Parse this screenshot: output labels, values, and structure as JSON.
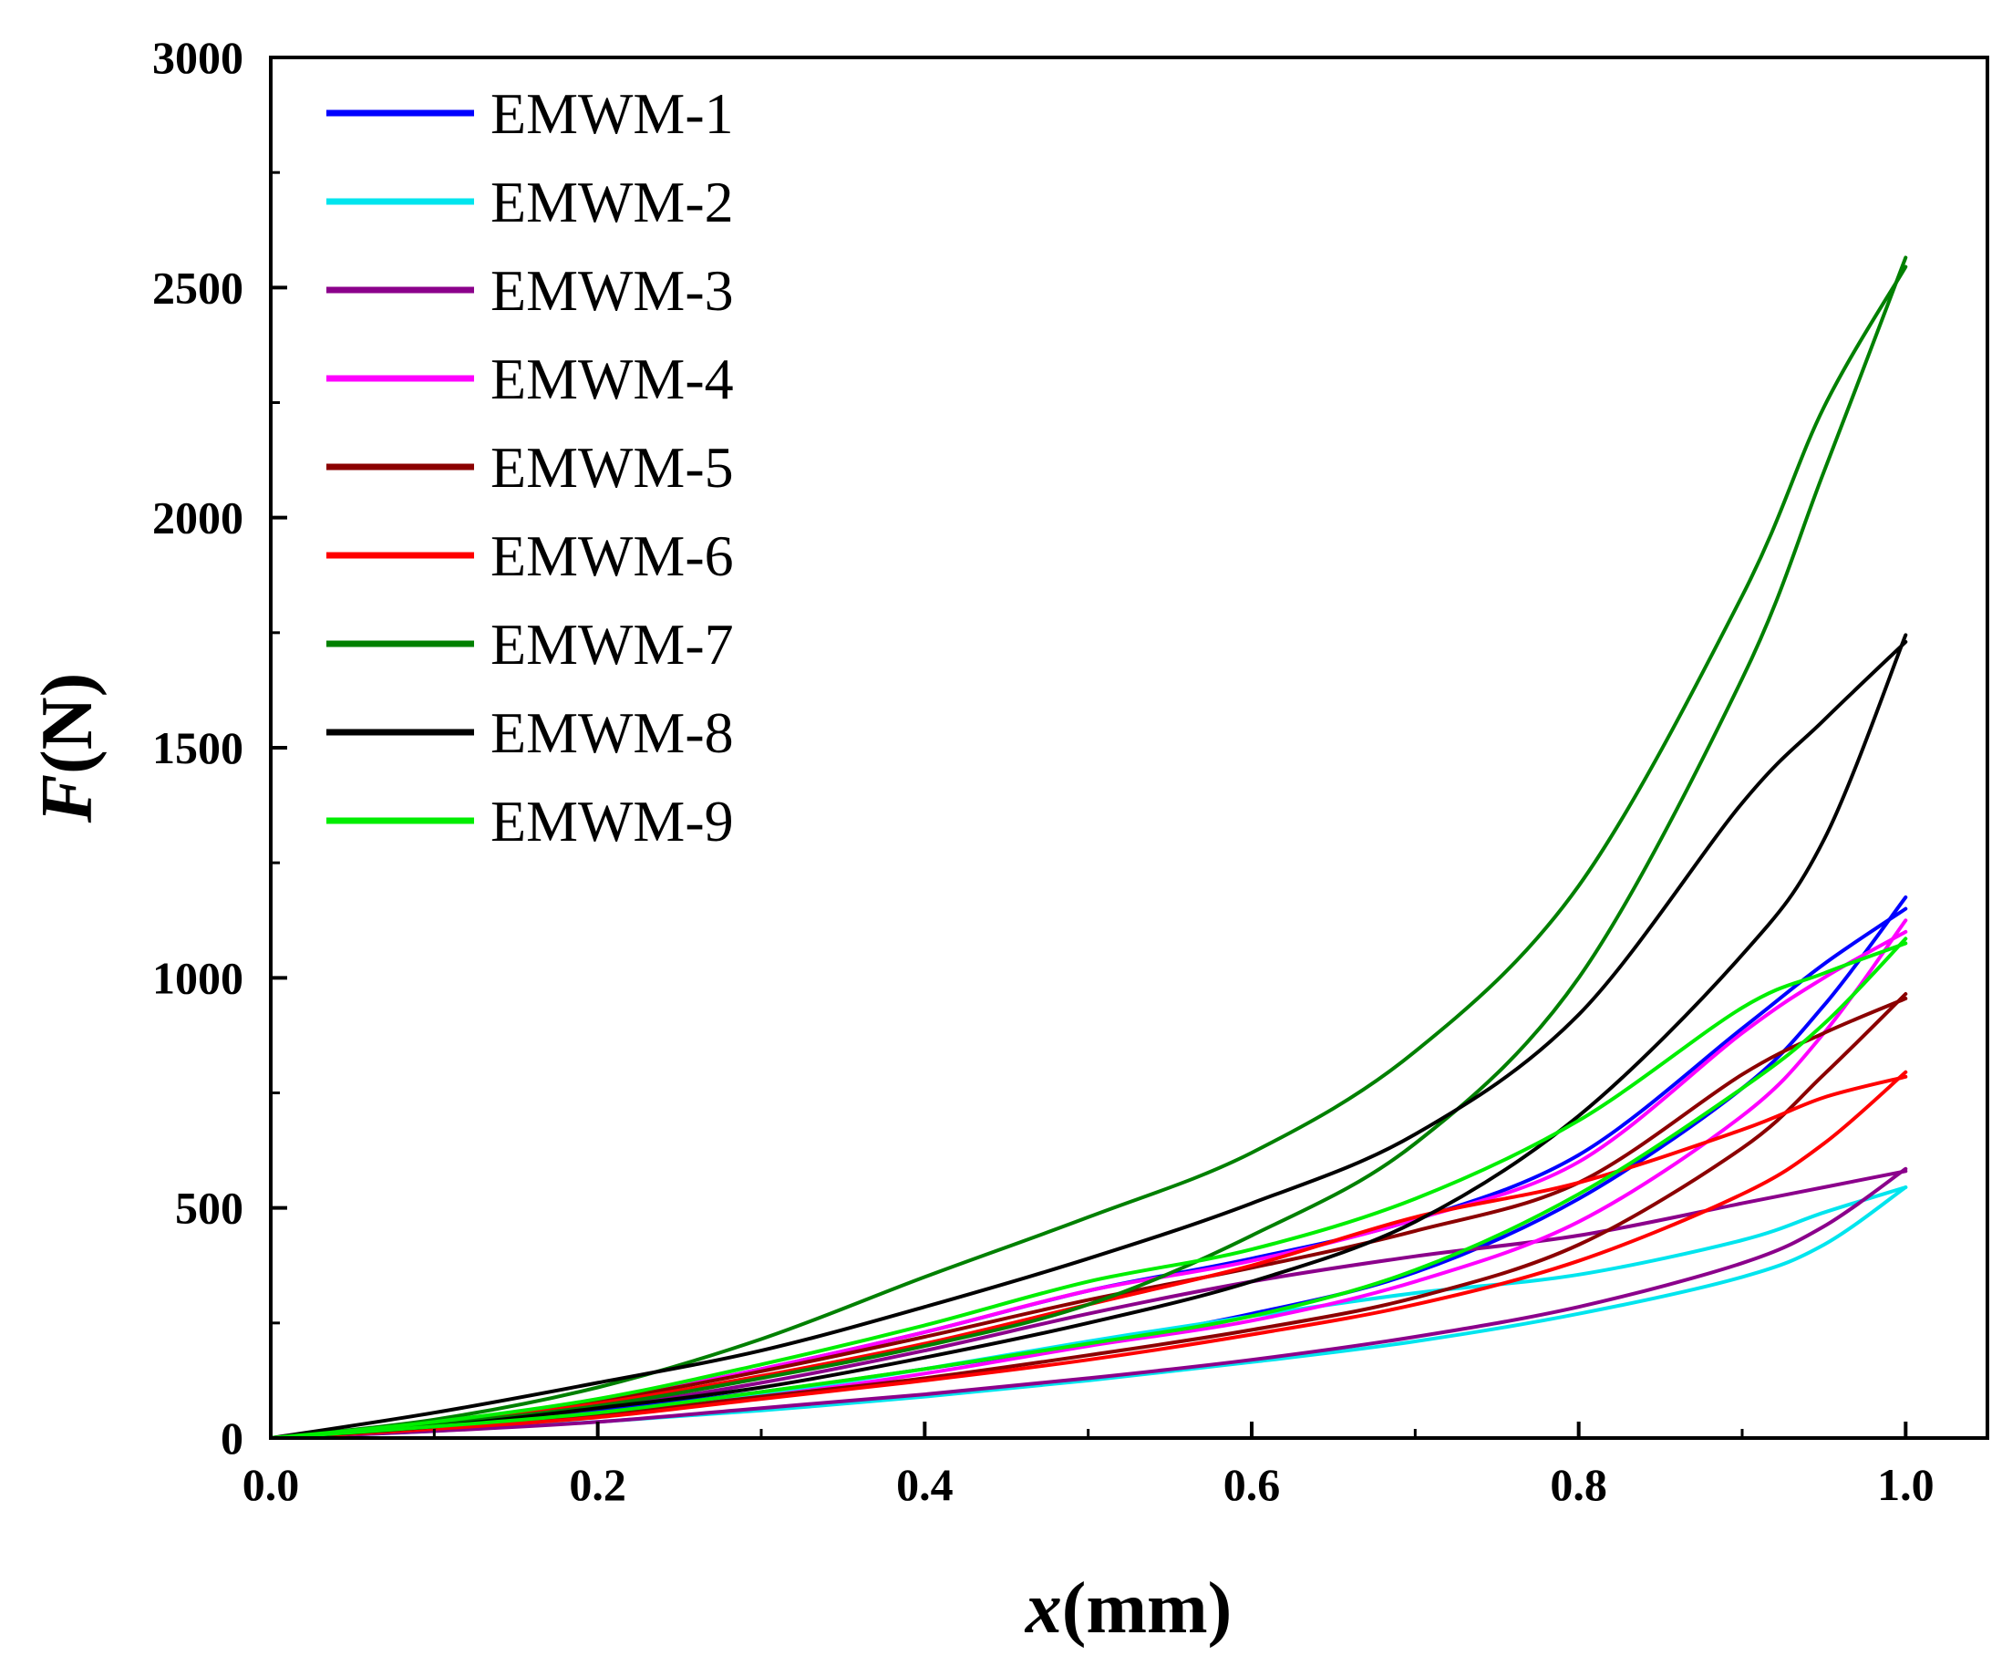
{
  "chart_data": {
    "type": "line",
    "title": "",
    "xlabel": {
      "symbol": "x",
      "unit": "(mm)"
    },
    "ylabel": {
      "symbol": "F",
      "unit": "(N)"
    },
    "xlim": [
      0,
      1.05
    ],
    "ylim": [
      0,
      3000
    ],
    "xticks": [
      0.0,
      0.2,
      0.4,
      0.6,
      0.8,
      1.0
    ],
    "xtick_labels": [
      "0.0",
      "0.2",
      "0.4",
      "0.6",
      "0.8",
      "1.0"
    ],
    "yticks": [
      0,
      500,
      1000,
      1500,
      2000,
      2500,
      3000
    ],
    "ytick_labels": [
      "0",
      "500",
      "1000",
      "1500",
      "2000",
      "2500",
      "3000"
    ],
    "grid": false,
    "legend_position": "top-left",
    "series": [
      {
        "name": "EMWM-1",
        "color": "#0000ff",
        "loading": [
          [
            0,
            0
          ],
          [
            0.1,
            25
          ],
          [
            0.2,
            60
          ],
          [
            0.3,
            100
          ],
          [
            0.4,
            150
          ],
          [
            0.5,
            205
          ],
          [
            0.6,
            270
          ],
          [
            0.7,
            360
          ],
          [
            0.8,
            520
          ],
          [
            0.9,
            760
          ],
          [
            0.95,
            940
          ],
          [
            1.0,
            1175
          ]
        ],
        "unloading": [
          [
            1.0,
            1150
          ],
          [
            0.95,
            1030
          ],
          [
            0.9,
            890
          ],
          [
            0.8,
            615
          ],
          [
            0.7,
            475
          ],
          [
            0.6,
            390
          ],
          [
            0.5,
            320
          ],
          [
            0.4,
            230
          ],
          [
            0.3,
            150
          ],
          [
            0.2,
            80
          ],
          [
            0.1,
            30
          ],
          [
            0,
            0
          ]
        ]
      },
      {
        "name": "EMWM-2",
        "color": "#00e5ee",
        "loading": [
          [
            0,
            0
          ],
          [
            0.1,
            15
          ],
          [
            0.2,
            35
          ],
          [
            0.3,
            60
          ],
          [
            0.4,
            90
          ],
          [
            0.5,
            125
          ],
          [
            0.6,
            165
          ],
          [
            0.7,
            210
          ],
          [
            0.8,
            270
          ],
          [
            0.9,
            350
          ],
          [
            0.95,
            420
          ],
          [
            1.0,
            545
          ]
        ],
        "unloading": [
          [
            1.0,
            545
          ],
          [
            0.95,
            490
          ],
          [
            0.9,
            430
          ],
          [
            0.8,
            355
          ],
          [
            0.7,
            315
          ],
          [
            0.6,
            265
          ],
          [
            0.5,
            210
          ],
          [
            0.4,
            150
          ],
          [
            0.3,
            95
          ],
          [
            0.2,
            50
          ],
          [
            0.1,
            20
          ],
          [
            0,
            0
          ]
        ]
      },
      {
        "name": "EMWM-3",
        "color": "#8b008b",
        "loading": [
          [
            0,
            0
          ],
          [
            0.1,
            15
          ],
          [
            0.2,
            35
          ],
          [
            0.3,
            65
          ],
          [
            0.4,
            95
          ],
          [
            0.5,
            130
          ],
          [
            0.6,
            170
          ],
          [
            0.7,
            220
          ],
          [
            0.8,
            285
          ],
          [
            0.9,
            380
          ],
          [
            0.95,
            460
          ],
          [
            1.0,
            585
          ]
        ],
        "unloading": [
          [
            1.0,
            580
          ],
          [
            0.95,
            545
          ],
          [
            0.9,
            510
          ],
          [
            0.8,
            440
          ],
          [
            0.7,
            395
          ],
          [
            0.6,
            340
          ],
          [
            0.5,
            270
          ],
          [
            0.4,
            190
          ],
          [
            0.3,
            120
          ],
          [
            0.2,
            65
          ],
          [
            0.1,
            25
          ],
          [
            0,
            0
          ]
        ]
      },
      {
        "name": "EMWM-4",
        "color": "#ff00ff",
        "loading": [
          [
            0,
            0
          ],
          [
            0.1,
            20
          ],
          [
            0.2,
            50
          ],
          [
            0.3,
            90
          ],
          [
            0.4,
            140
          ],
          [
            0.5,
            200
          ],
          [
            0.6,
            255
          ],
          [
            0.7,
            340
          ],
          [
            0.8,
            470
          ],
          [
            0.9,
            700
          ],
          [
            0.95,
            880
          ],
          [
            1.0,
            1125
          ]
        ],
        "unloading": [
          [
            1.0,
            1100
          ],
          [
            0.95,
            1000
          ],
          [
            0.9,
            880
          ],
          [
            0.8,
            600
          ],
          [
            0.7,
            475
          ],
          [
            0.6,
            385
          ],
          [
            0.5,
            320
          ],
          [
            0.4,
            230
          ],
          [
            0.3,
            150
          ],
          [
            0.2,
            80
          ],
          [
            0.1,
            30
          ],
          [
            0,
            0
          ]
        ]
      },
      {
        "name": "EMWM-5",
        "color": "#8b0000",
        "loading": [
          [
            0,
            0
          ],
          [
            0.1,
            20
          ],
          [
            0.2,
            50
          ],
          [
            0.3,
            90
          ],
          [
            0.4,
            130
          ],
          [
            0.5,
            180
          ],
          [
            0.6,
            235
          ],
          [
            0.7,
            305
          ],
          [
            0.8,
            420
          ],
          [
            0.9,
            630
          ],
          [
            0.95,
            790
          ],
          [
            1.0,
            965
          ]
        ],
        "unloading": [
          [
            1.0,
            955
          ],
          [
            0.95,
            880
          ],
          [
            0.9,
            790
          ],
          [
            0.8,
            555
          ],
          [
            0.7,
            450
          ],
          [
            0.6,
            370
          ],
          [
            0.5,
            300
          ],
          [
            0.4,
            220
          ],
          [
            0.3,
            145
          ],
          [
            0.2,
            80
          ],
          [
            0.1,
            30
          ],
          [
            0,
            0
          ]
        ]
      },
      {
        "name": "EMWM-6",
        "color": "#ff0000",
        "loading": [
          [
            0,
            0
          ],
          [
            0.1,
            20
          ],
          [
            0.2,
            45
          ],
          [
            0.3,
            85
          ],
          [
            0.4,
            125
          ],
          [
            0.5,
            170
          ],
          [
            0.6,
            225
          ],
          [
            0.7,
            290
          ],
          [
            0.8,
            385
          ],
          [
            0.9,
            530
          ],
          [
            0.95,
            640
          ],
          [
            1.0,
            795
          ]
        ],
        "unloading": [
          [
            1.0,
            785
          ],
          [
            0.95,
            740
          ],
          [
            0.9,
            670
          ],
          [
            0.8,
            555
          ],
          [
            0.7,
            480
          ],
          [
            0.6,
            375
          ],
          [
            0.5,
            290
          ],
          [
            0.4,
            205
          ],
          [
            0.3,
            135
          ],
          [
            0.2,
            75
          ],
          [
            0.1,
            30
          ],
          [
            0,
            0
          ]
        ]
      },
      {
        "name": "EMWM-7",
        "color": "#008000",
        "loading": [
          [
            0,
            0
          ],
          [
            0.1,
            30
          ],
          [
            0.2,
            70
          ],
          [
            0.3,
            130
          ],
          [
            0.4,
            200
          ],
          [
            0.5,
            290
          ],
          [
            0.6,
            440
          ],
          [
            0.7,
            640
          ],
          [
            0.8,
            1000
          ],
          [
            0.9,
            1650
          ],
          [
            0.95,
            2100
          ],
          [
            1.0,
            2565
          ]
        ],
        "unloading": [
          [
            1.0,
            2545
          ],
          [
            0.95,
            2240
          ],
          [
            0.9,
            1830
          ],
          [
            0.8,
            1200
          ],
          [
            0.7,
            840
          ],
          [
            0.6,
            620
          ],
          [
            0.5,
            480
          ],
          [
            0.4,
            350
          ],
          [
            0.3,
            215
          ],
          [
            0.2,
            110
          ],
          [
            0.1,
            40
          ],
          [
            0,
            0
          ]
        ]
      },
      {
        "name": "EMWM-8",
        "color": "#000000",
        "loading": [
          [
            0,
            0
          ],
          [
            0.1,
            25
          ],
          [
            0.2,
            65
          ],
          [
            0.3,
            110
          ],
          [
            0.4,
            175
          ],
          [
            0.5,
            250
          ],
          [
            0.6,
            340
          ],
          [
            0.7,
            470
          ],
          [
            0.8,
            700
          ],
          [
            0.9,
            1050
          ],
          [
            0.95,
            1300
          ],
          [
            1.0,
            1745
          ]
        ],
        "unloading": [
          [
            1.0,
            1730
          ],
          [
            0.95,
            1560
          ],
          [
            0.9,
            1380
          ],
          [
            0.8,
            920
          ],
          [
            0.7,
            660
          ],
          [
            0.6,
            510
          ],
          [
            0.5,
            390
          ],
          [
            0.4,
            285
          ],
          [
            0.3,
            190
          ],
          [
            0.2,
            120
          ],
          [
            0.1,
            55
          ],
          [
            0,
            0
          ]
        ]
      },
      {
        "name": "EMWM-9",
        "color": "#00ee00",
        "loading": [
          [
            0,
            0
          ],
          [
            0.1,
            25
          ],
          [
            0.2,
            55
          ],
          [
            0.3,
            100
          ],
          [
            0.4,
            150
          ],
          [
            0.5,
            205
          ],
          [
            0.6,
            265
          ],
          [
            0.7,
            365
          ],
          [
            0.8,
            530
          ],
          [
            0.9,
            760
          ],
          [
            0.95,
            900
          ],
          [
            1.0,
            1085
          ]
        ],
        "unloading": [
          [
            1.0,
            1075
          ],
          [
            0.95,
            1010
          ],
          [
            0.9,
            935
          ],
          [
            0.8,
            690
          ],
          [
            0.7,
            520
          ],
          [
            0.6,
            410
          ],
          [
            0.5,
            340
          ],
          [
            0.4,
            245
          ],
          [
            0.3,
            160
          ],
          [
            0.2,
            85
          ],
          [
            0.1,
            35
          ],
          [
            0,
            0
          ]
        ]
      }
    ]
  }
}
